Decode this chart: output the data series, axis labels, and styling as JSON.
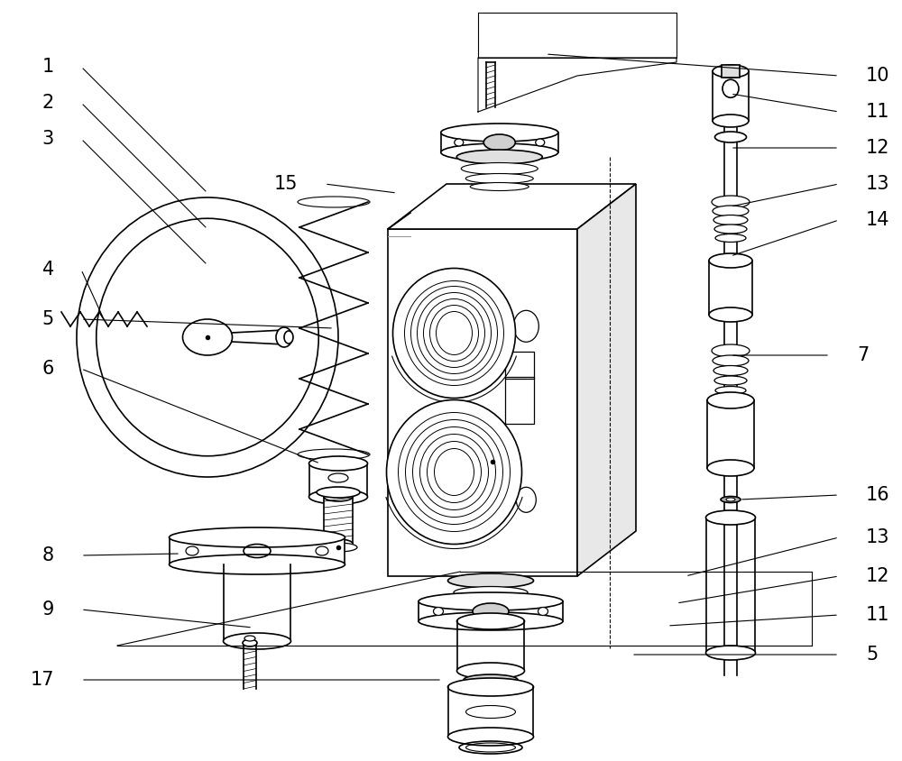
{
  "background_color": "#ffffff",
  "line_color": "#000000",
  "figure_width": 10.0,
  "figure_height": 8.44,
  "dpi": 100,
  "label_fontsize": 15
}
